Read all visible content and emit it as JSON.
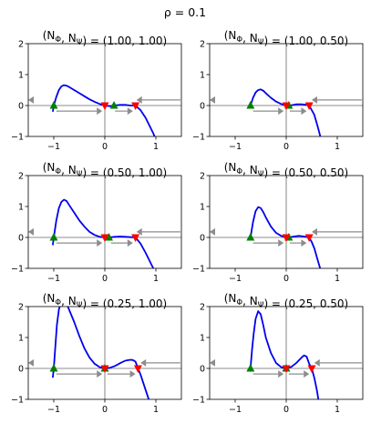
{
  "suptitle": "ρ = 0.1",
  "colors": {
    "curve": "#0000ee",
    "zero_lines": "#666666",
    "arrows": "#8c8c8c",
    "stable": "#008000",
    "unstable": "#ff0000"
  },
  "chart_data": [
    {
      "type": "line",
      "title": "(N_Φ, N_Ψ) = (1.00, 1.00)",
      "xlim": [
        -1.5,
        1.5
      ],
      "ylim": [
        -1,
        2
      ],
      "xticks": [
        "−1",
        "0",
        "1"
      ],
      "yticks": [
        "−1",
        "0",
        "1",
        "2"
      ],
      "curve": {
        "x": [
          -1.02,
          -1.0,
          -0.95,
          -0.9,
          -0.85,
          -0.8,
          -0.75,
          -0.7,
          -0.6,
          -0.5,
          -0.4,
          -0.3,
          -0.2,
          -0.1,
          0.0,
          0.1,
          0.18,
          0.3,
          0.4,
          0.5,
          0.6,
          0.7,
          0.8,
          0.95,
          1.02
        ],
        "y": [
          -0.2,
          0.0,
          0.28,
          0.5,
          0.62,
          0.66,
          0.64,
          0.6,
          0.5,
          0.4,
          0.3,
          0.2,
          0.12,
          0.05,
          0.0,
          -0.02,
          0.0,
          0.02,
          0.02,
          0.0,
          0.0,
          -0.15,
          -0.4,
          -0.9,
          -1.2
        ]
      },
      "stable_points": [
        -1.0,
        0.18
      ],
      "unstable_points": [
        0.0,
        0.6
      ],
      "flow_arrows": [
        {
          "from": -1.45,
          "to": -1.5,
          "y": 0.18
        },
        {
          "from": -0.95,
          "to": -0.05,
          "y": -0.18
        },
        {
          "from": 0.2,
          "to": 0.55,
          "y": -0.18
        },
        {
          "from": 1.48,
          "to": 0.62,
          "y": 0.18
        }
      ]
    },
    {
      "type": "line",
      "title": "(N_Φ, N_Ψ) = (1.00, 0.50)",
      "xlim": [
        -1.5,
        1.5
      ],
      "ylim": [
        -1,
        2
      ],
      "xticks": [
        "−1",
        "0",
        "1"
      ],
      "yticks": [
        "−1",
        "0",
        "1",
        "2"
      ],
      "curve": {
        "x": [
          -0.72,
          -0.7,
          -0.65,
          -0.6,
          -0.55,
          -0.5,
          -0.45,
          -0.4,
          -0.3,
          -0.2,
          -0.1,
          0.0,
          0.05,
          0.1,
          0.2,
          0.3,
          0.4,
          0.45,
          0.55,
          0.62,
          0.7
        ],
        "y": [
          -0.08,
          0.0,
          0.25,
          0.42,
          0.5,
          0.52,
          0.48,
          0.4,
          0.25,
          0.13,
          0.05,
          0.0,
          0.0,
          0.01,
          0.04,
          0.04,
          0.02,
          0.0,
          -0.3,
          -0.7,
          -1.2
        ]
      },
      "stable_points": [
        -0.7,
        0.05
      ],
      "unstable_points": [
        0.0,
        0.45
      ],
      "flow_arrows": [
        {
          "from": -1.45,
          "to": -1.5,
          "y": 0.18
        },
        {
          "from": -0.65,
          "to": -0.05,
          "y": -0.18
        },
        {
          "from": 0.07,
          "to": 0.4,
          "y": -0.18
        },
        {
          "from": 1.48,
          "to": 0.5,
          "y": 0.18
        }
      ]
    },
    {
      "type": "line",
      "title": "(N_Φ, N_Ψ) = (0.50, 1.00)",
      "xlim": [
        -1.5,
        1.5
      ],
      "ylim": [
        -1,
        2
      ],
      "xticks": [
        "−1",
        "0",
        "1"
      ],
      "yticks": [
        "−1",
        "0",
        "1",
        "2"
      ],
      "curve": {
        "x": [
          -1.02,
          -1.0,
          -0.95,
          -0.9,
          -0.85,
          -0.8,
          -0.75,
          -0.7,
          -0.6,
          -0.5,
          -0.4,
          -0.3,
          -0.2,
          -0.1,
          0.0,
          0.08,
          0.2,
          0.3,
          0.4,
          0.5,
          0.6,
          0.7,
          0.8,
          0.95,
          1.02
        ],
        "y": [
          -0.25,
          0.0,
          0.55,
          0.95,
          1.15,
          1.22,
          1.18,
          1.05,
          0.8,
          0.55,
          0.35,
          0.18,
          0.08,
          0.02,
          0.0,
          0.0,
          0.02,
          0.03,
          0.02,
          0.01,
          0.0,
          -0.2,
          -0.5,
          -1.0,
          -1.2
        ]
      },
      "stable_points": [
        -1.0,
        0.08
      ],
      "unstable_points": [
        0.0,
        0.6
      ],
      "flow_arrows": [
        {
          "from": -1.45,
          "to": -1.5,
          "y": 0.18
        },
        {
          "from": -0.95,
          "to": -0.05,
          "y": -0.18
        },
        {
          "from": 0.12,
          "to": 0.55,
          "y": -0.18
        },
        {
          "from": 1.48,
          "to": 0.62,
          "y": 0.18
        }
      ]
    },
    {
      "type": "line",
      "title": "(N_Φ, N_Ψ) = (0.50, 0.50)",
      "xlim": [
        -1.5,
        1.5
      ],
      "ylim": [
        -1,
        2
      ],
      "xticks": [
        "−1",
        "0",
        "1"
      ],
      "yticks": [
        "−1",
        "0",
        "1",
        "2"
      ],
      "curve": {
        "x": [
          -0.72,
          -0.7,
          -0.65,
          -0.6,
          -0.55,
          -0.5,
          -0.45,
          -0.4,
          -0.3,
          -0.2,
          -0.1,
          0.0,
          0.05,
          0.15,
          0.25,
          0.35,
          0.45,
          0.5,
          0.55,
          0.62,
          0.7
        ],
        "y": [
          -0.1,
          0.0,
          0.5,
          0.85,
          0.98,
          0.95,
          0.82,
          0.65,
          0.35,
          0.15,
          0.05,
          0.0,
          0.0,
          0.03,
          0.05,
          0.03,
          0.0,
          -0.15,
          -0.35,
          -0.75,
          -1.2
        ]
      },
      "stable_points": [
        -0.7,
        0.05
      ],
      "unstable_points": [
        0.0,
        0.45
      ],
      "flow_arrows": [
        {
          "from": -1.45,
          "to": -1.5,
          "y": 0.18
        },
        {
          "from": -0.65,
          "to": -0.05,
          "y": -0.18
        },
        {
          "from": 0.07,
          "to": 0.4,
          "y": -0.18
        },
        {
          "from": 1.48,
          "to": 0.5,
          "y": 0.18
        }
      ]
    },
    {
      "type": "line",
      "title": "(N_Φ, N_Ψ) = (0.25, 1.00)",
      "xlim": [
        -1.5,
        1.5
      ],
      "ylim": [
        -1,
        2
      ],
      "xticks": [
        "−1",
        "0",
        "1"
      ],
      "yticks": [
        "−1",
        "0",
        "1",
        "2"
      ],
      "curve": {
        "x": [
          -1.02,
          -1.0,
          -0.97,
          -0.94,
          -0.9,
          -0.85,
          -0.8,
          -0.75,
          -0.7,
          -0.6,
          -0.5,
          -0.4,
          -0.3,
          -0.2,
          -0.1,
          0.0,
          0.1,
          0.2,
          0.3,
          0.4,
          0.5,
          0.55,
          0.6,
          0.65,
          0.7,
          0.8,
          0.9
        ],
        "y": [
          -0.3,
          0.0,
          0.7,
          1.4,
          1.9,
          2.2,
          2.2,
          2.1,
          1.9,
          1.5,
          1.05,
          0.65,
          0.35,
          0.15,
          0.04,
          0.0,
          0.02,
          0.08,
          0.17,
          0.25,
          0.28,
          0.27,
          0.22,
          0.0,
          -0.2,
          -0.7,
          -1.2
        ]
      },
      "stable_points": [
        -1.0,
        0.0
      ],
      "unstable_points": [
        0.0,
        0.65
      ],
      "flow_arrows": [
        {
          "from": -1.45,
          "to": -1.5,
          "y": 0.18
        },
        {
          "from": -0.95,
          "to": -0.05,
          "y": -0.18
        },
        {
          "from": 0.05,
          "to": 0.6,
          "y": -0.18
        },
        {
          "from": 1.48,
          "to": 0.7,
          "y": 0.18
        }
      ]
    },
    {
      "type": "line",
      "title": "(N_Φ, N_Ψ) = (0.25, 0.50)",
      "xlim": [
        -1.5,
        1.5
      ],
      "ylim": [
        -1,
        2
      ],
      "xticks": [
        "−1",
        "0",
        "1"
      ],
      "yticks": [
        "−1",
        "0",
        "1",
        "2"
      ],
      "curve": {
        "x": [
          -0.72,
          -0.7,
          -0.67,
          -0.64,
          -0.6,
          -0.55,
          -0.5,
          -0.45,
          -0.4,
          -0.3,
          -0.2,
          -0.1,
          0.0,
          0.1,
          0.2,
          0.3,
          0.35,
          0.4,
          0.45,
          0.5,
          0.55,
          0.6,
          0.65
        ],
        "y": [
          -0.1,
          0.0,
          0.6,
          1.1,
          1.6,
          1.85,
          1.75,
          1.4,
          1.0,
          0.5,
          0.18,
          0.04,
          0.0,
          0.05,
          0.18,
          0.35,
          0.42,
          0.38,
          0.15,
          0.0,
          -0.3,
          -0.7,
          -1.2
        ]
      },
      "stable_points": [
        -0.7,
        0.0
      ],
      "unstable_points": [
        0.0,
        0.5
      ],
      "flow_arrows": [
        {
          "from": -1.45,
          "to": -1.5,
          "y": 0.18
        },
        {
          "from": -0.65,
          "to": -0.05,
          "y": -0.18
        },
        {
          "from": 0.05,
          "to": 0.45,
          "y": -0.18
        },
        {
          "from": 1.48,
          "to": 0.55,
          "y": 0.18
        }
      ]
    }
  ]
}
